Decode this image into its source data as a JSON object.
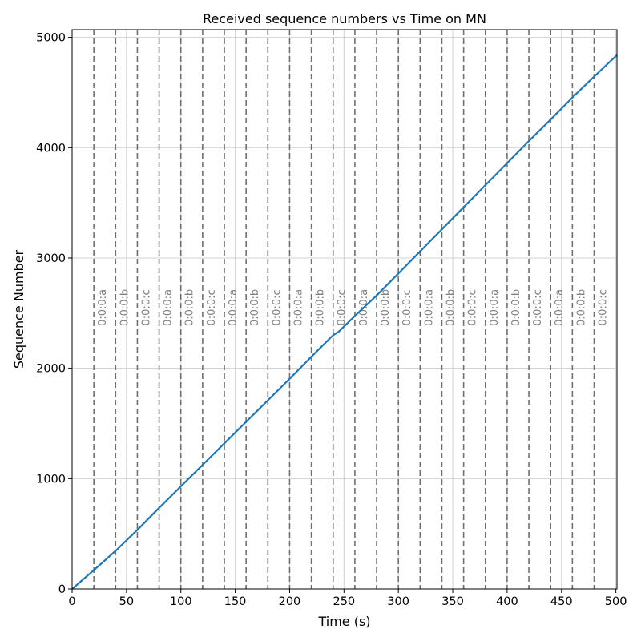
{
  "chart_data": {
    "type": "line",
    "title": "Received sequence numbers vs Time on MN",
    "xlabel": "Time (s)",
    "ylabel": "Sequence Number",
    "xlim": [
      0,
      501
    ],
    "ylim": [
      0,
      5070
    ],
    "x_ticks": [
      0,
      50,
      100,
      150,
      200,
      250,
      300,
      350,
      400,
      450,
      500
    ],
    "y_ticks": [
      0,
      1000,
      2000,
      3000,
      4000,
      5000
    ],
    "grid": true,
    "series": [
      {
        "color": "#1f77b4",
        "x": [
          0,
          20,
          40,
          60,
          80,
          100,
          120,
          140,
          160,
          180,
          200,
          220,
          240,
          245,
          260,
          280,
          300,
          320,
          340,
          360,
          380,
          400,
          420,
          440,
          460,
          480,
          501
        ],
        "y": [
          0,
          170,
          345,
          535,
          735,
          930,
          1125,
          1320,
          1515,
          1710,
          1905,
          2105,
          2300,
          2330,
          2475,
          2660,
          2860,
          3060,
          3260,
          3460,
          3660,
          3860,
          4060,
          4255,
          4455,
          4645,
          4840
        ]
      }
    ],
    "event_lines": [
      {
        "x": 20,
        "label": "0:0:0:a"
      },
      {
        "x": 40,
        "label": "0:0:0:b"
      },
      {
        "x": 60,
        "label": "0:0:0:c"
      },
      {
        "x": 80,
        "label": "0:0:0:a"
      },
      {
        "x": 100,
        "label": "0:0:0:b"
      },
      {
        "x": 120,
        "label": "0:0:0:c"
      },
      {
        "x": 140,
        "label": "0:0:0:a"
      },
      {
        "x": 160,
        "label": "0:0:0:b"
      },
      {
        "x": 180,
        "label": "0:0:0:c"
      },
      {
        "x": 200,
        "label": "0:0:0:a"
      },
      {
        "x": 220,
        "label": "0:0:0:b"
      },
      {
        "x": 240,
        "label": "0:0:0:c"
      },
      {
        "x": 260,
        "label": "0:0:0:a"
      },
      {
        "x": 280,
        "label": "0:0:0:b"
      },
      {
        "x": 300,
        "label": "0:0:0:c"
      },
      {
        "x": 320,
        "label": "0:0:0:a"
      },
      {
        "x": 340,
        "label": "0:0:0:b"
      },
      {
        "x": 360,
        "label": "0:0:0:c"
      },
      {
        "x": 380,
        "label": "0:0:0:a"
      },
      {
        "x": 400,
        "label": "0:0:0:b"
      },
      {
        "x": 420,
        "label": "0:0:0:c"
      },
      {
        "x": 440,
        "label": "0:0:0:a"
      },
      {
        "x": 460,
        "label": "0:0:0:b"
      },
      {
        "x": 480,
        "label": "0:0:0:c"
      }
    ],
    "event_label_y": 2550
  }
}
